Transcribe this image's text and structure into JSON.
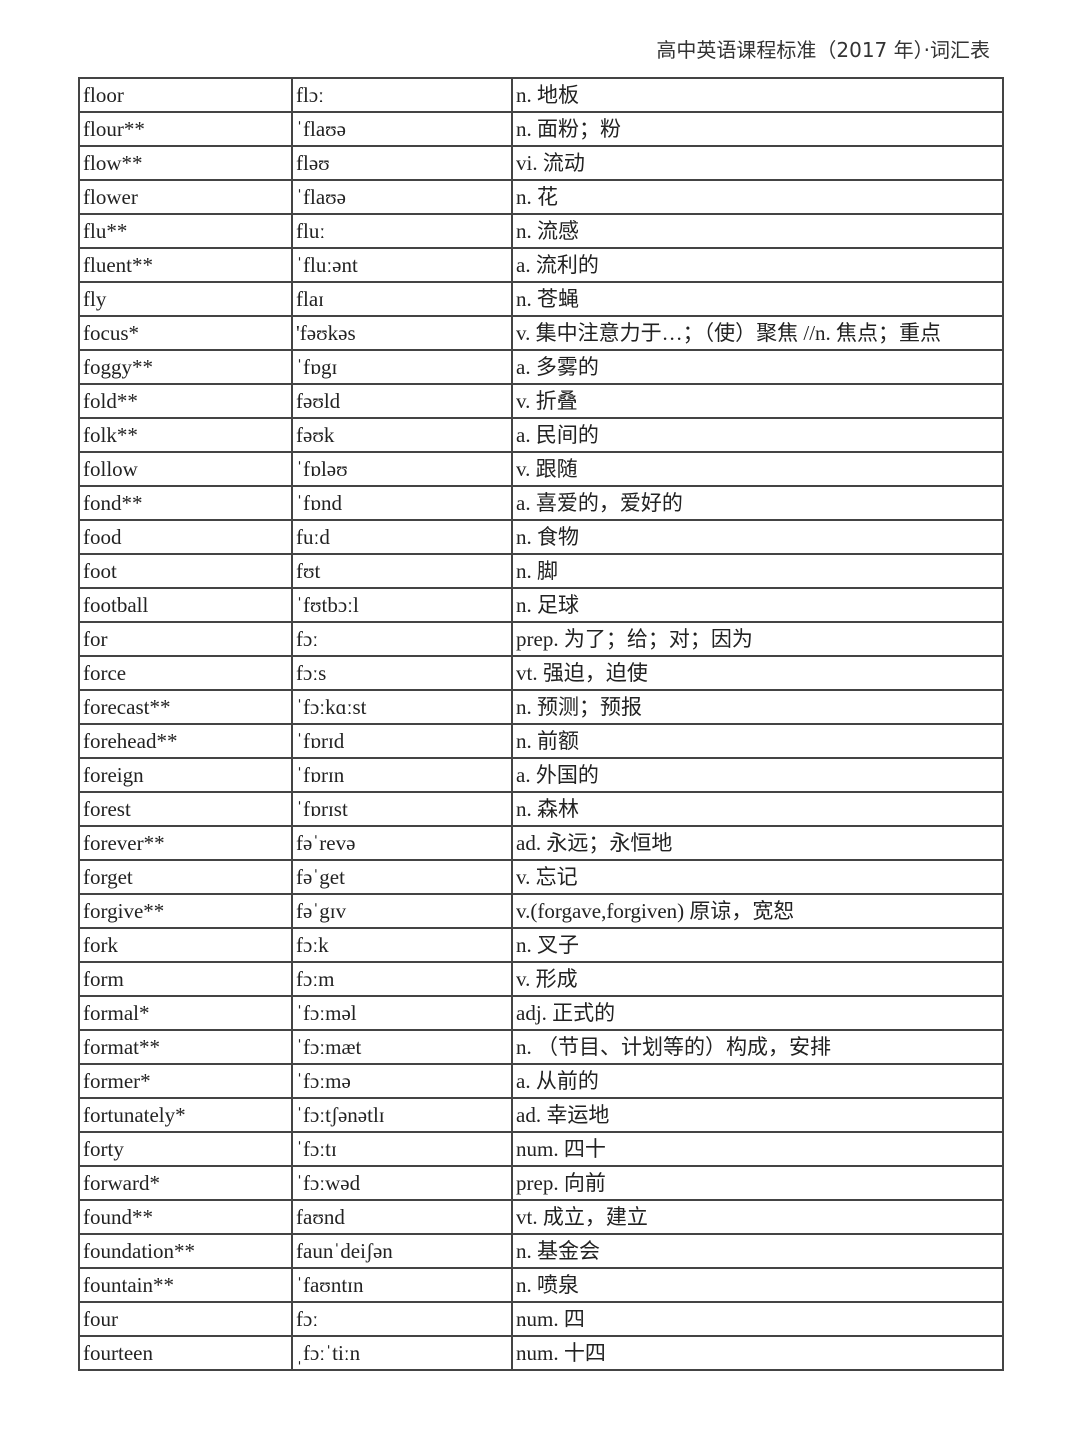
{
  "header": "高中英语课程标准（2017 年）·词汇表",
  "rows": [
    [
      "floor",
      "flɔː",
      "n. 地板"
    ],
    [
      "flour**",
      "ˈflaʊə",
      "n. 面粉；粉"
    ],
    [
      "flow**",
      "fləʊ",
      "vi. 流动"
    ],
    [
      "flower",
      "ˈflaʊə",
      "n. 花"
    ],
    [
      "flu**",
      "fluː",
      "n. 流感"
    ],
    [
      "fluent**",
      "ˈfluːənt",
      "a. 流利的"
    ],
    [
      "fly",
      "flaɪ",
      "n. 苍蝇"
    ],
    [
      "focus*",
      "'fəʊkəs",
      "v. 集中注意力于…；（使）聚焦 //n. 焦点；重点"
    ],
    [
      "foggy**",
      "ˈfɒgɪ",
      "a. 多雾的"
    ],
    [
      "fold**",
      "fəʊld",
      "v. 折叠"
    ],
    [
      "folk**",
      "fəʊk",
      "a. 民间的"
    ],
    [
      "follow",
      "ˈfɒləʊ",
      "v. 跟随"
    ],
    [
      "fond**",
      "ˈfɒnd",
      "a. 喜爱的，爱好的"
    ],
    [
      "food",
      "fuːd",
      "n. 食物"
    ],
    [
      "foot",
      "fʊt",
      "n. 脚"
    ],
    [
      "football",
      "ˈfʊtbɔːl",
      "n. 足球"
    ],
    [
      "for",
      "fɔː",
      "prep. 为了；给；对；因为"
    ],
    [
      "force",
      "fɔːs",
      "vt. 强迫，迫使"
    ],
    [
      "forecast**",
      "ˈfɔːkɑːst",
      "n. 预测；预报"
    ],
    [
      "forehead**",
      "ˈfɒrɪd",
      "n. 前额"
    ],
    [
      "foreign",
      "ˈfɒrɪn",
      "a. 外国的"
    ],
    [
      "forest",
      "ˈfɒrɪst",
      "n. 森林"
    ],
    [
      "forever**",
      "fəˈrevə",
      "ad. 永远；永恒地"
    ],
    [
      "forget",
      "fəˈget",
      "v. 忘记"
    ],
    [
      "forgive**",
      "fəˈgɪv",
      "v.(forgave,forgiven) 原谅，宽恕"
    ],
    [
      "fork",
      "fɔːk",
      "n. 叉子"
    ],
    [
      "form",
      "fɔːm",
      "v. 形成"
    ],
    [
      "formal*",
      "ˈfɔːməl",
      "adj. 正式的"
    ],
    [
      "format**",
      "ˈfɔːmæt",
      "n. （节目、计划等的）构成，安排"
    ],
    [
      "former*",
      "ˈfɔːmə",
      "a. 从前的"
    ],
    [
      "fortunately*",
      "ˈfɔːtʃənətlɪ",
      "ad. 幸运地"
    ],
    [
      "forty",
      "ˈfɔːtɪ",
      "num. 四十"
    ],
    [
      "forward*",
      "ˈfɔːwəd",
      "prep. 向前"
    ],
    [
      "found**",
      "faʊnd",
      "vt. 成立，建立"
    ],
    [
      "foundation**",
      "faunˈdeiʃən",
      "n. 基金会"
    ],
    [
      "fountain**",
      "ˈfaʊntɪn",
      "n. 喷泉"
    ],
    [
      "four",
      "fɔː",
      "num. 四"
    ],
    [
      "fourteen",
      "ˌfɔːˈtiːn",
      "num. 十四"
    ]
  ]
}
